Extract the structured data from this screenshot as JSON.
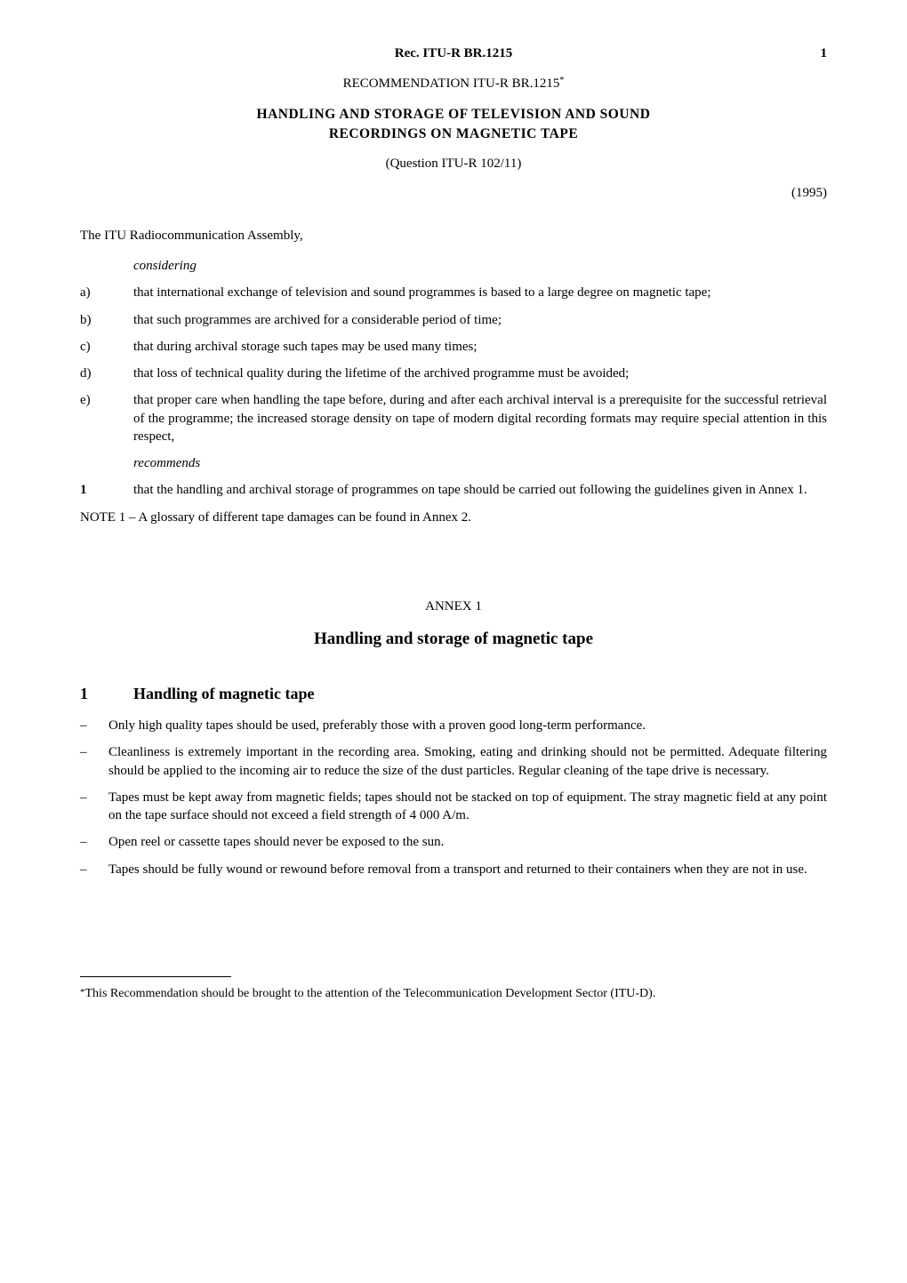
{
  "header": {
    "running_head": "Rec. ITU-R BR.1215",
    "page_number": "1"
  },
  "recommendation_line": "RECOMMENDATION  ITU-R  BR.1215",
  "rec_star": "*",
  "title_line1": "HANDLING  AND  STORAGE  OF  TELEVISION  AND  SOUND",
  "title_line2": "RECORDINGS  ON  MAGNETIC  TAPE",
  "question": "(Question ITU-R 102/11)",
  "year": "(1995)",
  "assembly": "The ITU Radiocommunication Assembly,",
  "considering_label": "considering",
  "considering": {
    "a": {
      "letter": "a)",
      "text": "that international exchange of television and sound programmes is based to a large degree on magnetic tape;"
    },
    "b": {
      "letter": "b)",
      "text": "that such programmes are archived for a considerable period of time;"
    },
    "c": {
      "letter": "c)",
      "text": "that during archival storage such tapes may be used many times;"
    },
    "d": {
      "letter": "d)",
      "text": "that loss of technical quality during the lifetime of the archived programme must be avoided;"
    },
    "e": {
      "letter": "e)",
      "text": "that proper care when handling the tape before, during and after each archival interval is a prerequisite for the successful retrieval of the programme; the increased storage density on tape of modern digital recording formats may require special attention in this respect,"
    }
  },
  "recommends_label": "recommends",
  "recommends": {
    "num": "1",
    "text": "that the handling and archival storage of programmes on tape should be carried out following the guidelines given in Annex 1."
  },
  "note": "NOTE 1 – A glossary of different tape damages can be found in Annex 2.",
  "annex": {
    "label": "ANNEX  1",
    "title": "Handling and storage of magnetic tape"
  },
  "section1": {
    "num": "1",
    "heading": "Handling of magnetic tape",
    "bullets": [
      "Only high quality tapes should be used, preferably those with a proven good long-term performance.",
      "Cleanliness is extremely important in the recording area. Smoking, eating and drinking should not be permitted. Adequate filtering should be applied to the incoming air to reduce the size of the dust particles. Regular cleaning of the tape drive is necessary.",
      "Tapes must be kept away from magnetic fields; tapes should not be stacked on top of equipment. The stray magnetic field at any point on the tape surface should not exceed a field strength of 4 000 A/m.",
      "Open reel or cassette tapes should never be exposed to the sun.",
      "Tapes should be fully wound or rewound before removal from a transport and returned to their containers when they are not in use."
    ]
  },
  "footnote": {
    "marker": "*",
    "text": "This Recommendation should be brought to the attention of the Telecommunication Development Sector (ITU-D)."
  }
}
